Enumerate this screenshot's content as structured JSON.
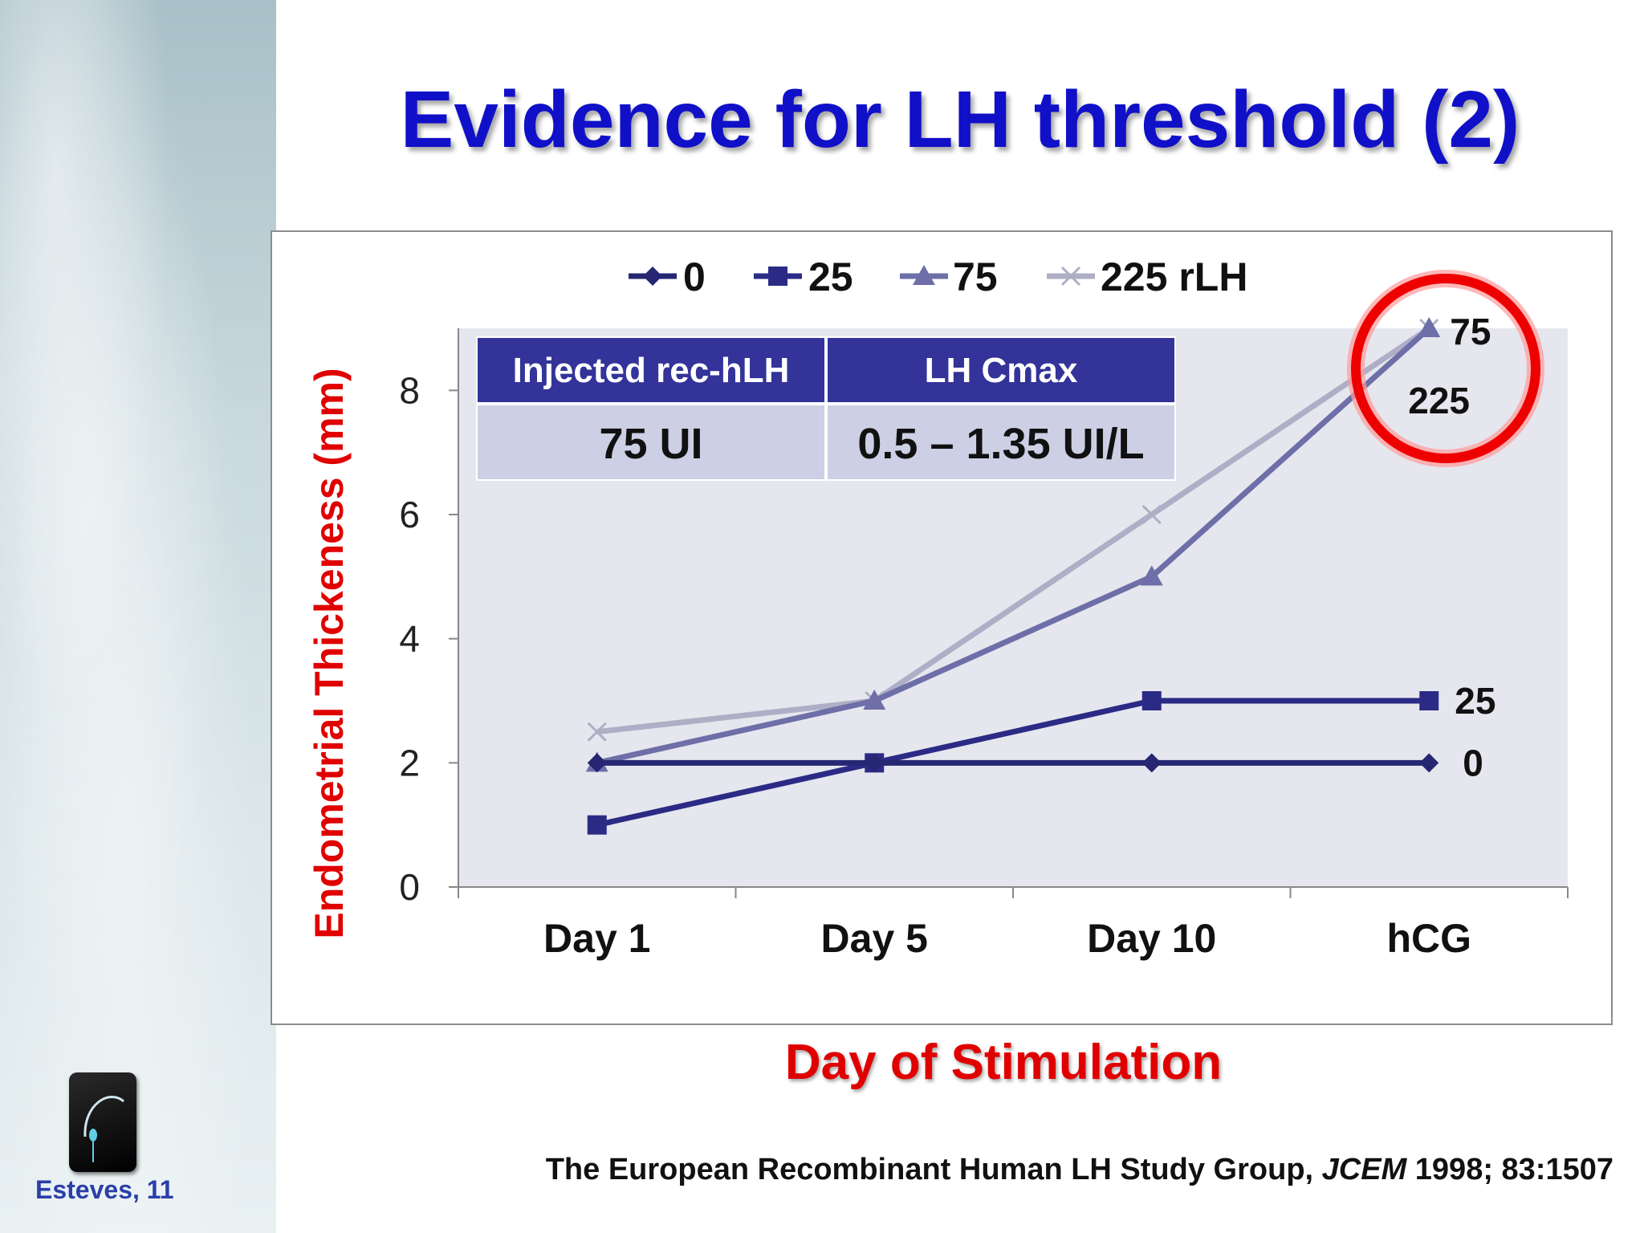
{
  "slide": {
    "title": "Evidence for LH threshold (2)",
    "author": "Esteves, 11",
    "citation": {
      "prefix": "The European Recombinant Human LH Study Group, ",
      "journal": "JCEM",
      "suffix": " 1998; 83:1507"
    }
  },
  "inset_table": {
    "headers": [
      "Injected rec-hLH",
      "LH Cmax"
    ],
    "row": [
      "75 UI",
      "0.5 – 1.35 UI/L"
    ]
  },
  "colors": {
    "title": "#1010c8",
    "axis_label": "#e00000",
    "table_header_bg": "#333399",
    "table_cell_bg": "#cdd0e4",
    "plot_bg": "#e6e6ee",
    "highlight_circle": "#ee0000"
  },
  "chart_data": {
    "type": "line",
    "categories": [
      "Day 1",
      "Day 5",
      "Day 10",
      "hCG"
    ],
    "ylabel": "Endometrial Thickeness (mm)",
    "xlabel": "Day of Stimulation",
    "ylim": [
      0,
      9
    ],
    "yticks": [
      "0",
      "2",
      "4",
      "6",
      "8"
    ],
    "legend_position": "top",
    "series": [
      {
        "name": "0",
        "values": [
          2,
          2,
          2,
          2
        ],
        "color": "#262673",
        "marker": "diamond",
        "end_label": "0"
      },
      {
        "name": "25",
        "values": [
          1,
          2,
          3,
          3
        ],
        "color": "#2b2b86",
        "marker": "square",
        "end_label": "25"
      },
      {
        "name": "75",
        "values": [
          2,
          3,
          5,
          9
        ],
        "color": "#6e6ea8",
        "marker": "triangle",
        "end_label": "75"
      },
      {
        "name": "225 rLH",
        "values": [
          2.5,
          3,
          6,
          9
        ],
        "color": "#aeaec6",
        "marker": "x",
        "end_label": "225"
      }
    ]
  }
}
